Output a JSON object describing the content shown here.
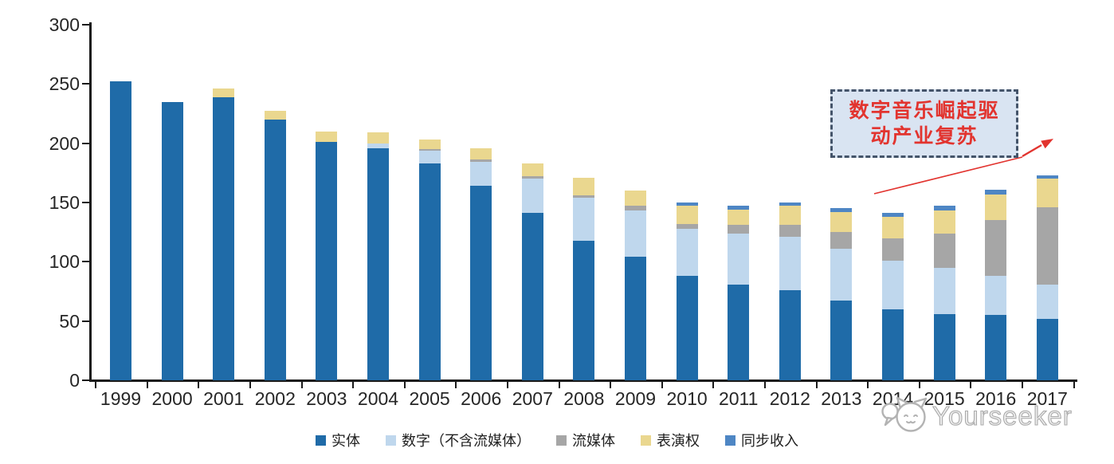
{
  "chart_data": {
    "type": "bar",
    "stacked": true,
    "title": "",
    "categories": [
      "1999",
      "2000",
      "2001",
      "2002",
      "2003",
      "2004",
      "2005",
      "2006",
      "2007",
      "2008",
      "2009",
      "2010",
      "2011",
      "2012",
      "2013",
      "2014",
      "2015",
      "2016",
      "2017"
    ],
    "series": [
      {
        "name": "实体",
        "color": "#1F6BA8",
        "values": [
          252,
          235,
          239,
          220,
          201,
          196,
          183,
          164,
          141,
          118,
          104,
          88,
          81,
          76,
          67,
          60,
          56,
          55,
          52
        ]
      },
      {
        "name": "数字（不含流媒体）",
        "color": "#BFD7ED",
        "values": [
          0,
          0,
          0,
          0,
          0,
          4,
          11,
          20,
          29,
          36,
          39,
          40,
          43,
          45,
          44,
          41,
          39,
          33,
          29
        ]
      },
      {
        "name": "流媒体",
        "color": "#A6A6A6",
        "values": [
          0,
          0,
          0,
          0,
          0,
          0,
          1,
          2,
          2,
          2,
          4,
          4,
          7,
          10,
          14,
          19,
          29,
          47,
          65
        ]
      },
      {
        "name": "表演权",
        "color": "#EAD78F",
        "values": [
          0,
          0,
          7,
          7,
          9,
          9,
          8,
          10,
          11,
          15,
          13,
          15,
          13,
          16,
          17,
          18,
          19,
          22,
          24
        ]
      },
      {
        "name": "同步收入",
        "color": "#4E86C4",
        "values": [
          0,
          0,
          0,
          0,
          0,
          0,
          0,
          0,
          0,
          0,
          0,
          3,
          3,
          3,
          3,
          3,
          4,
          4,
          3
        ]
      }
    ],
    "ylim": [
      0,
      300
    ],
    "yticks": [
      0,
      50,
      100,
      150,
      200,
      250,
      300
    ],
    "grid": false,
    "legend_position": "bottom"
  },
  "annotation": {
    "line1": "数字音乐崛起驱",
    "line2": "动产业复苏"
  },
  "watermark": {
    "text": "Yourseeker"
  },
  "colors": {
    "axis": "#1a1a1a",
    "tick_label": "#262626",
    "annotation_text": "#E2342F",
    "annotation_border": "#44546A",
    "annotation_bg": "#D9E4F2",
    "arrow": "#E2342F",
    "watermark": "#ababab"
  }
}
